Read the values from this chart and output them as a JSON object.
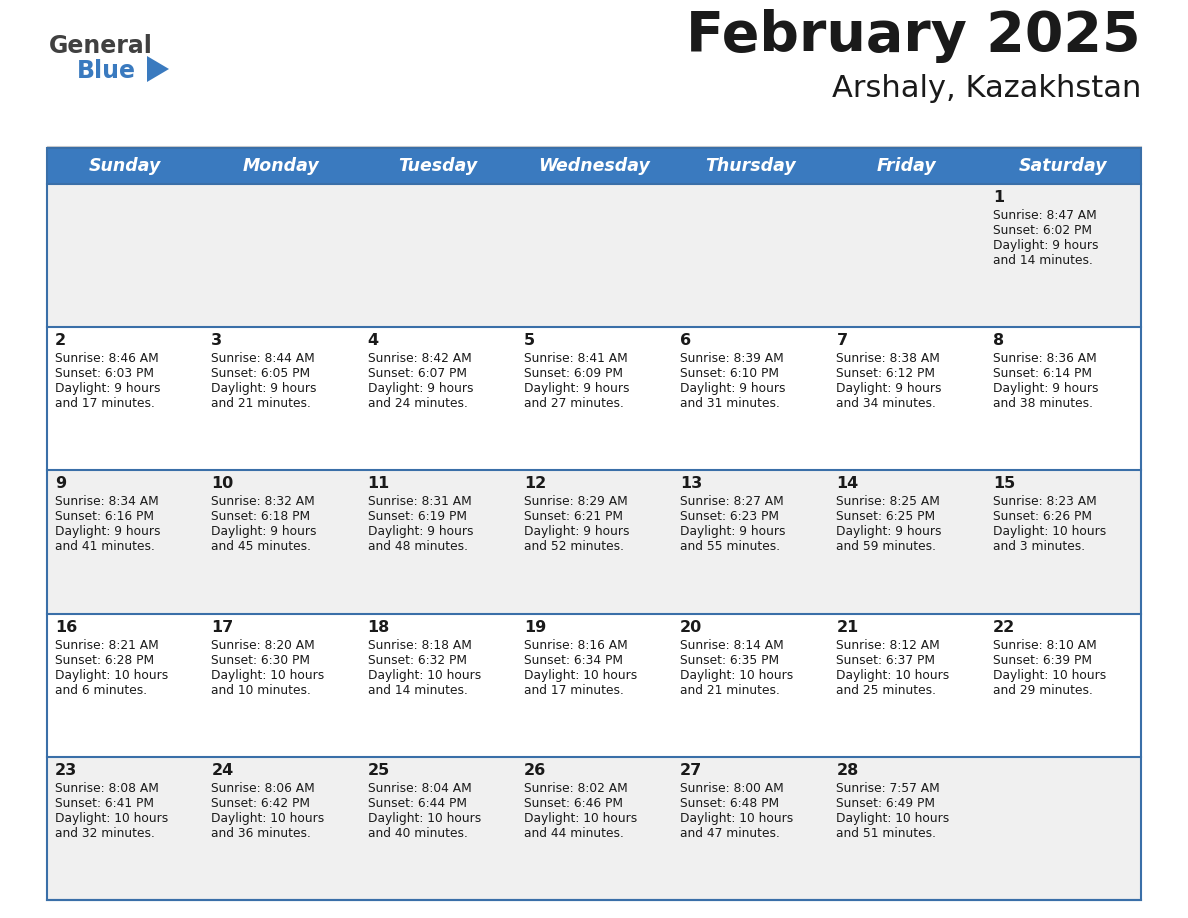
{
  "title": "February 2025",
  "subtitle": "Arshaly, Kazakhstan",
  "days_of_week": [
    "Sunday",
    "Monday",
    "Tuesday",
    "Wednesday",
    "Thursday",
    "Friday",
    "Saturday"
  ],
  "header_bg": "#3a7abf",
  "header_text": "#ffffff",
  "row_bg_odd": "#f0f0f0",
  "row_bg_even": "#ffffff",
  "cell_border_color": "#3a6fa8",
  "text_color": "#222222",
  "calendar": [
    [
      null,
      null,
      null,
      null,
      null,
      null,
      {
        "day": "1",
        "sunrise": "8:47 AM",
        "sunset": "6:02 PM",
        "daylight": "9 hours\nand 14 minutes."
      }
    ],
    [
      {
        "day": "2",
        "sunrise": "8:46 AM",
        "sunset": "6:03 PM",
        "daylight": "9 hours\nand 17 minutes."
      },
      {
        "day": "3",
        "sunrise": "8:44 AM",
        "sunset": "6:05 PM",
        "daylight": "9 hours\nand 21 minutes."
      },
      {
        "day": "4",
        "sunrise": "8:42 AM",
        "sunset": "6:07 PM",
        "daylight": "9 hours\nand 24 minutes."
      },
      {
        "day": "5",
        "sunrise": "8:41 AM",
        "sunset": "6:09 PM",
        "daylight": "9 hours\nand 27 minutes."
      },
      {
        "day": "6",
        "sunrise": "8:39 AM",
        "sunset": "6:10 PM",
        "daylight": "9 hours\nand 31 minutes."
      },
      {
        "day": "7",
        "sunrise": "8:38 AM",
        "sunset": "6:12 PM",
        "daylight": "9 hours\nand 34 minutes."
      },
      {
        "day": "8",
        "sunrise": "8:36 AM",
        "sunset": "6:14 PM",
        "daylight": "9 hours\nand 38 minutes."
      }
    ],
    [
      {
        "day": "9",
        "sunrise": "8:34 AM",
        "sunset": "6:16 PM",
        "daylight": "9 hours\nand 41 minutes."
      },
      {
        "day": "10",
        "sunrise": "8:32 AM",
        "sunset": "6:18 PM",
        "daylight": "9 hours\nand 45 minutes."
      },
      {
        "day": "11",
        "sunrise": "8:31 AM",
        "sunset": "6:19 PM",
        "daylight": "9 hours\nand 48 minutes."
      },
      {
        "day": "12",
        "sunrise": "8:29 AM",
        "sunset": "6:21 PM",
        "daylight": "9 hours\nand 52 minutes."
      },
      {
        "day": "13",
        "sunrise": "8:27 AM",
        "sunset": "6:23 PM",
        "daylight": "9 hours\nand 55 minutes."
      },
      {
        "day": "14",
        "sunrise": "8:25 AM",
        "sunset": "6:25 PM",
        "daylight": "9 hours\nand 59 minutes."
      },
      {
        "day": "15",
        "sunrise": "8:23 AM",
        "sunset": "6:26 PM",
        "daylight": "10 hours\nand 3 minutes."
      }
    ],
    [
      {
        "day": "16",
        "sunrise": "8:21 AM",
        "sunset": "6:28 PM",
        "daylight": "10 hours\nand 6 minutes."
      },
      {
        "day": "17",
        "sunrise": "8:20 AM",
        "sunset": "6:30 PM",
        "daylight": "10 hours\nand 10 minutes."
      },
      {
        "day": "18",
        "sunrise": "8:18 AM",
        "sunset": "6:32 PM",
        "daylight": "10 hours\nand 14 minutes."
      },
      {
        "day": "19",
        "sunrise": "8:16 AM",
        "sunset": "6:34 PM",
        "daylight": "10 hours\nand 17 minutes."
      },
      {
        "day": "20",
        "sunrise": "8:14 AM",
        "sunset": "6:35 PM",
        "daylight": "10 hours\nand 21 minutes."
      },
      {
        "day": "21",
        "sunrise": "8:12 AM",
        "sunset": "6:37 PM",
        "daylight": "10 hours\nand 25 minutes."
      },
      {
        "day": "22",
        "sunrise": "8:10 AM",
        "sunset": "6:39 PM",
        "daylight": "10 hours\nand 29 minutes."
      }
    ],
    [
      {
        "day": "23",
        "sunrise": "8:08 AM",
        "sunset": "6:41 PM",
        "daylight": "10 hours\nand 32 minutes."
      },
      {
        "day": "24",
        "sunrise": "8:06 AM",
        "sunset": "6:42 PM",
        "daylight": "10 hours\nand 36 minutes."
      },
      {
        "day": "25",
        "sunrise": "8:04 AM",
        "sunset": "6:44 PM",
        "daylight": "10 hours\nand 40 minutes."
      },
      {
        "day": "26",
        "sunrise": "8:02 AM",
        "sunset": "6:46 PM",
        "daylight": "10 hours\nand 44 minutes."
      },
      {
        "day": "27",
        "sunrise": "8:00 AM",
        "sunset": "6:48 PM",
        "daylight": "10 hours\nand 47 minutes."
      },
      {
        "day": "28",
        "sunrise": "7:57 AM",
        "sunset": "6:49 PM",
        "daylight": "10 hours\nand 51 minutes."
      },
      null
    ]
  ]
}
